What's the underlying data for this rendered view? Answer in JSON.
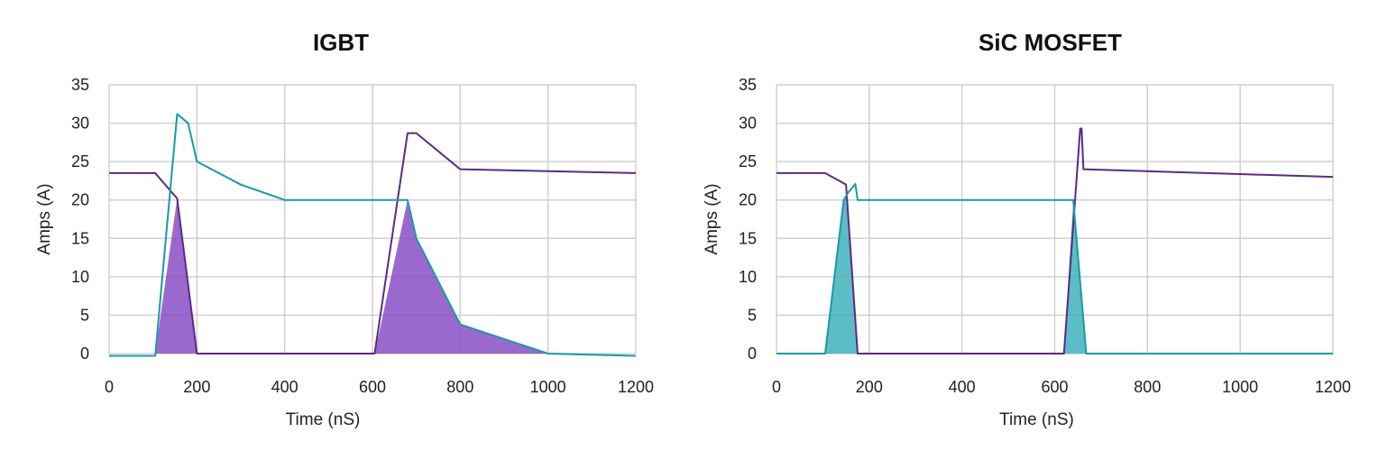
{
  "chart_data": [
    {
      "type": "line",
      "title": "IGBT",
      "xlabel": "Time (nS)",
      "ylabel": "Amps (A)",
      "xlim": [
        0,
        1200
      ],
      "ylim": [
        0,
        35
      ],
      "xticks": [
        0,
        200,
        400,
        600,
        800,
        1000,
        1200
      ],
      "yticks": [
        0,
        5,
        10,
        15,
        20,
        25,
        30,
        35
      ],
      "grid": true,
      "colors": {
        "purple": "#5b2a86",
        "teal": "#1a9aa8",
        "purple_fill": "#8a4fc4",
        "teal_fill": "#3fb2bd"
      },
      "series": [
        {
          "color": "purple",
          "x": [
            0,
            105,
            155,
            200,
            605,
            680,
            700,
            800,
            1200
          ],
          "y": [
            23.5,
            23.5,
            20.2,
            0,
            0,
            28.7,
            28.7,
            24,
            23.5
          ]
        },
        {
          "color": "teal",
          "x": [
            0,
            105,
            155,
            180,
            200,
            300,
            400,
            680,
            700,
            800,
            1000,
            1200
          ],
          "y": [
            -0.3,
            -0.3,
            31.2,
            30,
            25,
            22,
            20,
            20,
            15,
            3.8,
            0,
            -0.3
          ]
        }
      ],
      "shaded_regions": [
        {
          "color": "purple_fill",
          "x": [
            105,
            155,
            200
          ],
          "y_top": [
            0,
            20.2,
            0
          ]
        },
        {
          "color": "purple_fill",
          "x": [
            605,
            680,
            700,
            800,
            1000
          ],
          "y_top": [
            0,
            20,
            15,
            3.8,
            0
          ]
        }
      ]
    },
    {
      "type": "line",
      "title": "SiC MOSFET",
      "xlabel": "Time (nS)",
      "ylabel": "Amps (A)",
      "xlim": [
        0,
        1200
      ],
      "ylim": [
        0,
        35
      ],
      "xticks": [
        0,
        200,
        400,
        600,
        800,
        1000,
        1200
      ],
      "yticks": [
        0,
        5,
        10,
        15,
        20,
        25,
        30,
        35
      ],
      "grid": true,
      "colors": {
        "purple": "#5b2a86",
        "teal": "#1a9aa8",
        "purple_fill": "#8a4fc4",
        "teal_fill": "#3fb2bd"
      },
      "series": [
        {
          "color": "purple",
          "x": [
            0,
            105,
            150,
            175,
            620,
            655,
            658,
            662,
            1200
          ],
          "y": [
            23.5,
            23.5,
            22,
            0,
            0,
            29.3,
            29.3,
            24,
            23
          ]
        },
        {
          "color": "teal",
          "x": [
            0,
            105,
            145,
            155,
            170,
            175,
            640,
            668,
            1200
          ],
          "y": [
            0,
            0,
            20,
            21,
            22.1,
            20,
            20,
            0,
            0
          ]
        }
      ],
      "shaded_regions": [
        {
          "color": "teal_fill",
          "x": [
            105,
            145,
            150,
            175
          ],
          "y_top": [
            0,
            20,
            20.5,
            0
          ]
        },
        {
          "color": "teal_fill",
          "x": [
            620,
            640,
            668
          ],
          "y_top": [
            0,
            20,
            0
          ]
        }
      ]
    }
  ]
}
